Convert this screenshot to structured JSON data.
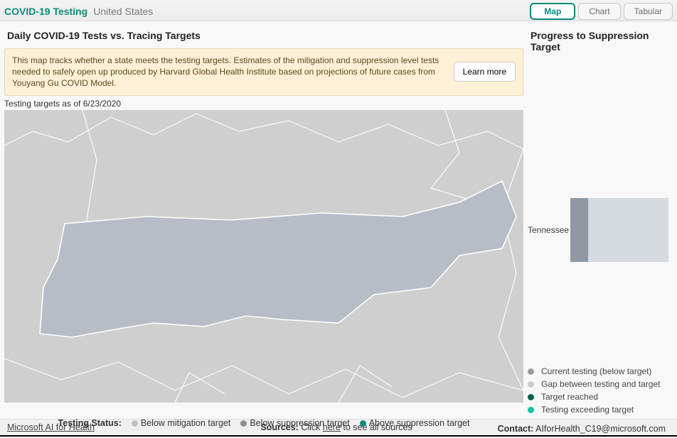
{
  "header": {
    "brand": "COVID-19 Testing",
    "region": "United States",
    "tabs": {
      "map": "Map",
      "chart": "Chart",
      "tabular": "Tabular"
    }
  },
  "panel": {
    "title": "Daily COVID-19 Tests vs. Tracing Targets",
    "info_msg": "This map tracks whether a state meets the testing targets. Estimates of the mitigation and suppression level tests needed to safely open up produced by Harvard Global Health Institute based on projections of future cases from Youyang Gu COVID Model.",
    "learn_more": "Learn more",
    "asof": "Testing targets as of 6/23/2020"
  },
  "map": {
    "bg": "#cfcfcf",
    "state_fill": "#b6bdc6",
    "state_stroke": "#ffffff",
    "border_stroke": "#ffffff"
  },
  "legend": {
    "label": "Testing Status:",
    "items": [
      {
        "text": "Below mitigation target",
        "color": "#c0c0c0"
      },
      {
        "text": "Below suppression target",
        "color": "#8f8f8f"
      },
      {
        "text": "Above suppression target",
        "color": "#0b8a7a"
      }
    ]
  },
  "progress": {
    "title": "Progress to Suppression Target",
    "state": "Tennessee",
    "bar_bg": "#d6dbdf",
    "bar_fill": "#8e99a3",
    "fill_ratio": 0.18,
    "legend": [
      {
        "text": "Current testing (below target)",
        "color": "#9a9a9a"
      },
      {
        "text": "Gap between testing and target",
        "color": "#c9cdd1"
      },
      {
        "text": "Target reached",
        "color": "#0a5f52"
      },
      {
        "text": "Testing exceeding target",
        "color": "#19c2a4"
      }
    ]
  },
  "footer": {
    "link": "Microsoft AI for Health",
    "sources_label": "Sources:",
    "sources_text1": " Click ",
    "sources_here": "here",
    "sources_text2": " to see all sources",
    "contact_label": "Contact:",
    "contact_value": " AIforHealth_C19@microsoft.com"
  }
}
